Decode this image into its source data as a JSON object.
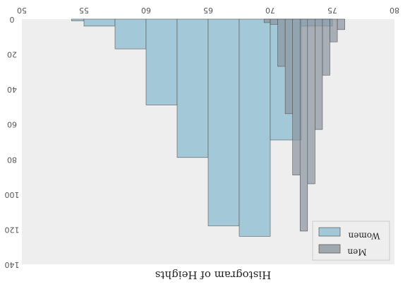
{
  "chart_data": {
    "type": "bar",
    "title": "",
    "xlabel": "Histogram of Heights",
    "ylabel": "",
    "x_ticks": [
      50,
      55,
      60,
      65,
      70,
      75,
      80
    ],
    "y_ticks": [
      0,
      20,
      40,
      60,
      80,
      100,
      120,
      140
    ],
    "xlim": [
      50,
      80
    ],
    "ylim": [
      0,
      140
    ],
    "y_inverted": true,
    "grid": false,
    "legend": {
      "placement": "bottom-right",
      "reversed_text": true
    },
    "series": [
      {
        "name": "Women",
        "color": "#a3c9d9",
        "bins": [
          {
            "x0": 54.0,
            "x1": 55.0,
            "value": 1
          },
          {
            "x0": 55.0,
            "x1": 57.5,
            "value": 4
          },
          {
            "x0": 57.5,
            "x1": 60.0,
            "value": 17
          },
          {
            "x0": 60.0,
            "x1": 62.5,
            "value": 49
          },
          {
            "x0": 62.5,
            "x1": 65.0,
            "value": 79
          },
          {
            "x0": 65.0,
            "x1": 67.5,
            "value": 118
          },
          {
            "x0": 67.5,
            "x1": 70.0,
            "value": 124
          },
          {
            "x0": 70.0,
            "x1": 72.5,
            "value": 69
          },
          {
            "x0": 72.5,
            "x1": 75.0,
            "value": 4
          }
        ]
      },
      {
        "name": "Men",
        "color": "#8c969f",
        "bins": [
          {
            "x0": 69.5,
            "x1": 70.0,
            "value": 2
          },
          {
            "x0": 70.0,
            "x1": 70.6,
            "value": 3
          },
          {
            "x0": 70.6,
            "x1": 71.2,
            "value": 27
          },
          {
            "x0": 71.2,
            "x1": 71.8,
            "value": 54
          },
          {
            "x0": 71.8,
            "x1": 72.4,
            "value": 89
          },
          {
            "x0": 72.4,
            "x1": 73.0,
            "value": 121
          },
          {
            "x0": 73.0,
            "x1": 73.6,
            "value": 94
          },
          {
            "x0": 73.6,
            "x1": 74.2,
            "value": 63
          },
          {
            "x0": 74.2,
            "x1": 74.8,
            "value": 32
          },
          {
            "x0": 74.8,
            "x1": 75.4,
            "value": 13
          },
          {
            "x0": 75.4,
            "x1": 76.0,
            "value": 6
          }
        ]
      }
    ]
  },
  "colors": {
    "plot_background": "#eeeeee",
    "bar_edge": "#555555"
  }
}
